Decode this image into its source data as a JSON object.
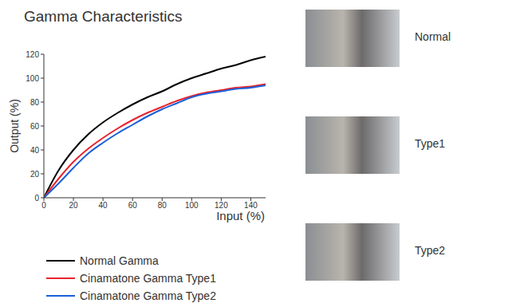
{
  "chart_data": {
    "type": "line",
    "title": "Gamma Characteristics",
    "xlabel": "Input (%)",
    "ylabel": "Output (%)",
    "x": [
      0,
      10,
      20,
      30,
      40,
      50,
      60,
      70,
      80,
      90,
      100,
      110,
      120,
      130,
      140,
      150
    ],
    "series": [
      {
        "name": "Normal Gamma",
        "color": "#000000",
        "values": [
          0,
          23,
          40,
          53,
          63,
          71,
          78,
          84,
          89,
          95,
          100,
          104,
          108,
          111,
          115,
          118
        ]
      },
      {
        "name": "Cinamatone Gamma Type1",
        "color": "#e8232b",
        "values": [
          0,
          16,
          30,
          41,
          50,
          58,
          65,
          71,
          76,
          81,
          85,
          88,
          90,
          92,
          93,
          95
        ]
      },
      {
        "name": "Cinamatone Gamma Type2",
        "color": "#1a5fd8",
        "values": [
          0,
          12,
          25,
          37,
          46,
          54,
          61,
          68,
          74,
          79,
          84,
          87,
          89,
          91,
          92,
          94
        ]
      }
    ],
    "xlim": [
      0,
      150
    ],
    "ylim": [
      0,
      120
    ],
    "xticks": [
      0,
      20,
      40,
      60,
      80,
      100,
      120,
      140
    ],
    "yticks": [
      0,
      20,
      40,
      60,
      80,
      100,
      120
    ],
    "grid": false,
    "legend": "bottom"
  },
  "images": [
    {
      "label": "Normal"
    },
    {
      "label": "Type1"
    },
    {
      "label": "Type2"
    }
  ]
}
